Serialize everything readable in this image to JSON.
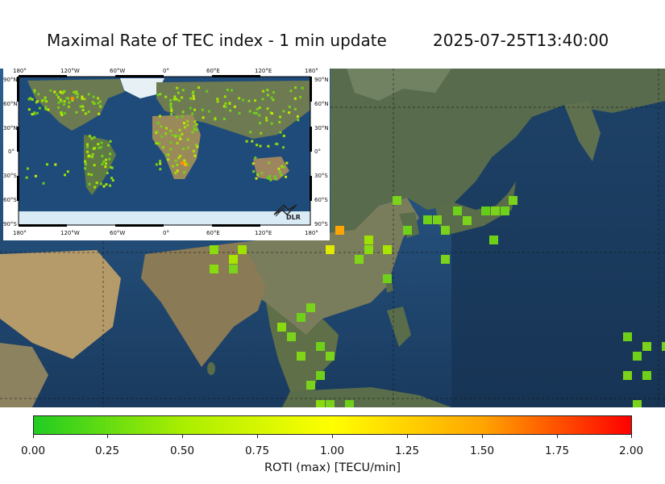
{
  "title": {
    "left": "Maximal Rate of TEC index - 1 min update",
    "right": "2025-07-25T13:40:00"
  },
  "inset": {
    "lon_labels": [
      "180°",
      "120°W",
      "60°W",
      "0°",
      "60°E",
      "120°E",
      "180°"
    ],
    "lat_labels": [
      "90°N",
      "60°N",
      "30°N",
      "0°",
      "30°S",
      "60°S",
      "90°S"
    ],
    "logo_text": "DLR"
  },
  "colorbar": {
    "title": "ROTI (max) [TECU/min]",
    "ticks": [
      "0.00",
      "0.25",
      "0.50",
      "0.75",
      "1.00",
      "1.25",
      "1.50",
      "1.75",
      "2.00"
    ],
    "colors": [
      "#22cc22",
      "#aaee00",
      "#ffff00",
      "#ffa500",
      "#ff0000"
    ]
  },
  "colors": {
    "ocean_deep": "#1b3a5c",
    "ocean": "#2a5d8f",
    "land": "#55634a"
  }
}
